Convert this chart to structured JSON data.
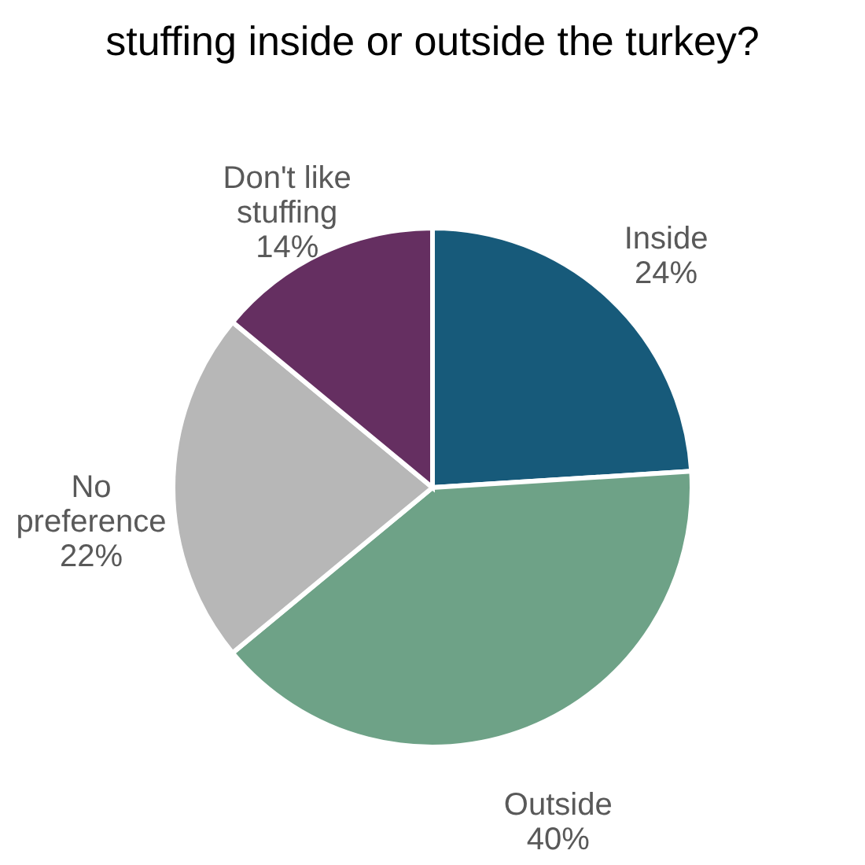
{
  "chart_data": {
    "type": "pie",
    "title": "stuffing inside or outside the turkey?",
    "categories": [
      "Inside",
      "Outside",
      "No preference",
      "Don't like stuffing"
    ],
    "values": [
      24,
      40,
      22,
      14
    ],
    "value_labels": [
      "24%",
      "40%",
      "22%",
      "14%"
    ],
    "colors": [
      "#175a7a",
      "#6ea287",
      "#b7b7b7",
      "#652f61"
    ],
    "legend": false
  }
}
